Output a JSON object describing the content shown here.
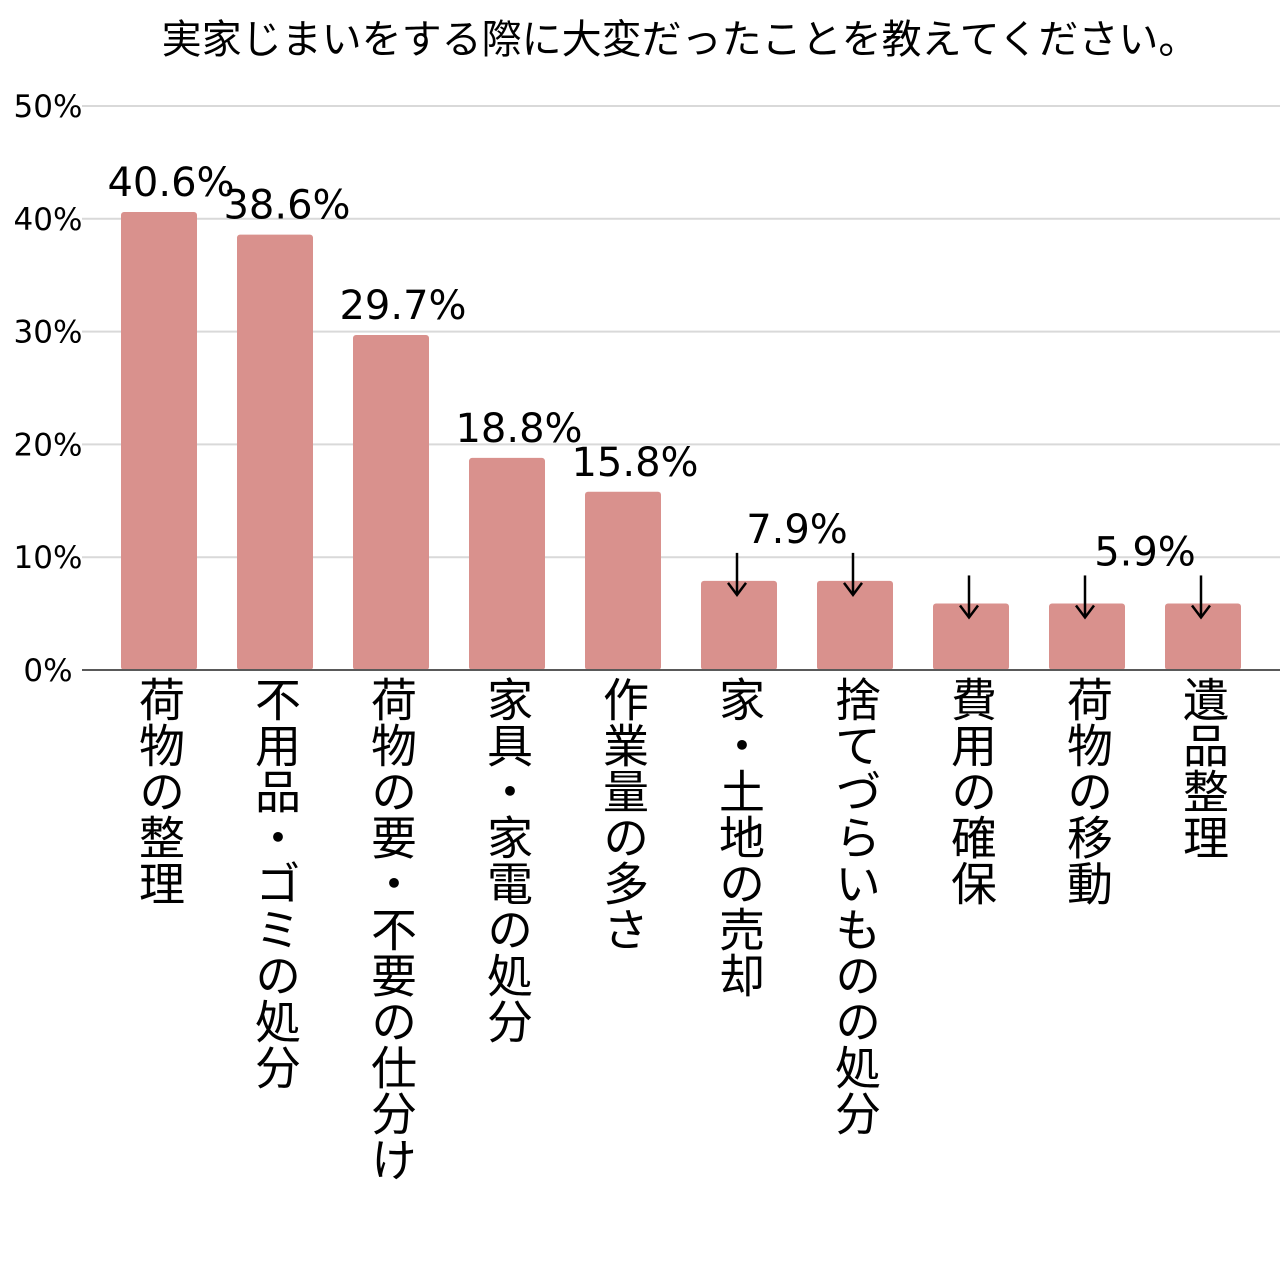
{
  "chart_data": {
    "type": "bar",
    "title": "実家じまいをする際に大変だったことを教えてください。",
    "categories": [
      "荷物の整理",
      "不用品・ゴミの処分",
      "荷物の要・不要の仕分け",
      "家具・家電の処分",
      "作業量の多さ",
      "家・土地の売却",
      "捨てづらいものの処分",
      "費用の確保",
      "荷物の移動",
      "遺品整理"
    ],
    "values": [
      40.6,
      38.6,
      29.7,
      18.8,
      15.8,
      7.9,
      7.9,
      5.9,
      5.9,
      5.9
    ],
    "value_labels": [
      "40.6%",
      "38.6%",
      "29.7%",
      "18.8%",
      "15.8%",
      "7.9%",
      "",
      "",
      "5.9%",
      ""
    ],
    "arrow_markers": [
      false,
      false,
      false,
      false,
      false,
      true,
      true,
      true,
      true,
      true
    ],
    "ylim": [
      0,
      50
    ],
    "yticks": [
      "0%",
      "10%",
      "20%",
      "30%",
      "40%",
      "50%"
    ],
    "grid": true,
    "bar_color": "#d9918d",
    "gridline_color": "#d9d9d9",
    "axis_color": "#595959"
  }
}
